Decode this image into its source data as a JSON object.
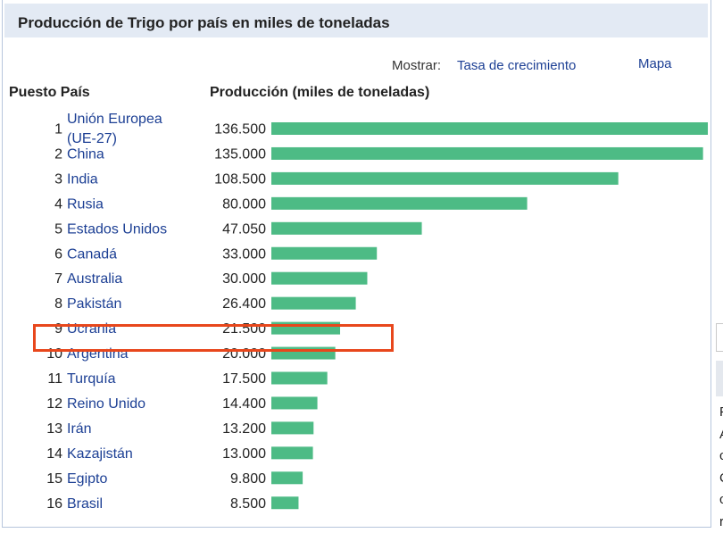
{
  "title": "Producción de Trigo por país en miles de toneladas",
  "controls": {
    "show_label": "Mostrar:",
    "show_link": "Tasa de crecimiento",
    "map_link": "Mapa"
  },
  "headers": {
    "rank_country": "Puesto País",
    "production": "Producción (miles de toneladas)"
  },
  "colors": {
    "bar": "#4dbb85",
    "link": "#1c3f94",
    "highlight": "#e8471c",
    "title_bar": "#e3eaf4"
  },
  "highlighted_country": "Ucrania",
  "chart_data": {
    "type": "bar",
    "orientation": "horizontal",
    "title": "Producción de Trigo por país en miles de toneladas",
    "ylabel": "Producción (miles de toneladas)",
    "xlim": [
      0,
      136500
    ],
    "grid": false,
    "rows": [
      {
        "rank": "1",
        "country": "Unión Europea (UE-27)",
        "country_lines": [
          "Unión Europea",
          "(UE-27)"
        ],
        "value": 136500,
        "label": "136.500"
      },
      {
        "rank": "2",
        "country": "China",
        "value": 135000,
        "label": "135.000"
      },
      {
        "rank": "3",
        "country": "India",
        "value": 108500,
        "label": "108.500"
      },
      {
        "rank": "4",
        "country": "Rusia",
        "value": 80000,
        "label": "80.000"
      },
      {
        "rank": "5",
        "country": "Estados Unidos",
        "value": 47050,
        "label": "47.050"
      },
      {
        "rank": "6",
        "country": "Canadá",
        "value": 33000,
        "label": "33.000"
      },
      {
        "rank": "7",
        "country": "Australia",
        "value": 30000,
        "label": "30.000"
      },
      {
        "rank": "8",
        "country": "Pakistán",
        "value": 26400,
        "label": "26.400"
      },
      {
        "rank": "9",
        "country": "Ucrania",
        "value": 21500,
        "label": "21.500"
      },
      {
        "rank": "10",
        "country": "Argentina",
        "value": 20000,
        "label": "20.000"
      },
      {
        "rank": "11",
        "country": "Turquía",
        "value": 17500,
        "label": "17.500"
      },
      {
        "rank": "12",
        "country": "Reino Unido",
        "value": 14400,
        "label": "14.400"
      },
      {
        "rank": "13",
        "country": "Irán",
        "value": 13200,
        "label": "13.200"
      },
      {
        "rank": "14",
        "country": "Kazajistán",
        "value": 13000,
        "label": "13.000"
      },
      {
        "rank": "15",
        "country": "Egipto",
        "value": 9800,
        "label": "9.800"
      },
      {
        "rank": "16",
        "country": "Brasil",
        "value": 8500,
        "label": "8.500"
      }
    ]
  },
  "side_fragment": {
    "letters": [
      "F",
      "A",
      "c",
      "C",
      "c",
      "r"
    ]
  }
}
